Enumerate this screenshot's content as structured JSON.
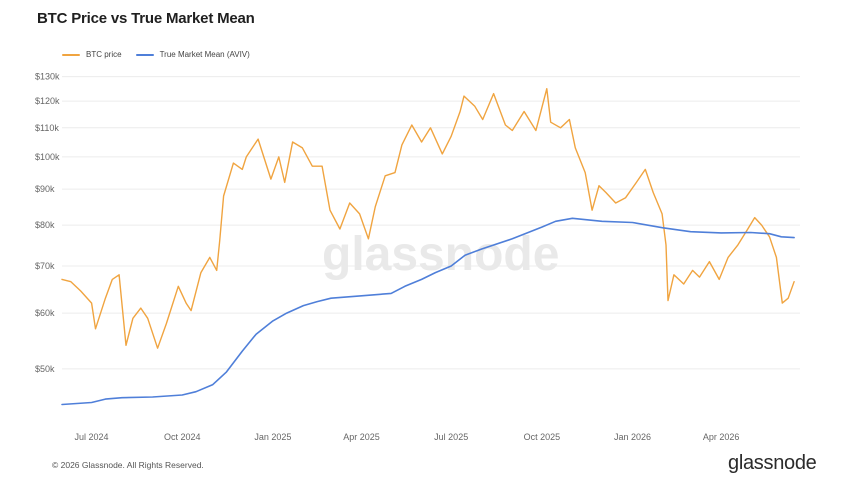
{
  "page": {
    "title": "BTC Price vs True Market Mean",
    "footer": "© 2026 Glassnode. All Rights Reserved.",
    "brand": "glassnode",
    "watermark": "glassnode"
  },
  "chart_data": {
    "type": "line",
    "title": "BTC Price vs True Market Mean",
    "xlabel": "",
    "ylabel": "",
    "y_scale": "log",
    "ylim": [
      43000,
      132000
    ],
    "xlim": [
      "2024-06-01",
      "2026-06-20"
    ],
    "grid": true,
    "legend_position": "top-left",
    "y_ticks": [
      {
        "value": 50000,
        "label": "$50k"
      },
      {
        "value": 60000,
        "label": "$60k"
      },
      {
        "value": 70000,
        "label": "$70k"
      },
      {
        "value": 80000,
        "label": "$80k"
      },
      {
        "value": 90000,
        "label": "$90k"
      },
      {
        "value": 100000,
        "label": "$100k"
      },
      {
        "value": 110000,
        "label": "$110k"
      },
      {
        "value": 120000,
        "label": "$120k"
      },
      {
        "value": 130000,
        "label": "$130k"
      }
    ],
    "x_ticks": [
      {
        "value": "2024-07-01",
        "label": "Jul 2024"
      },
      {
        "value": "2024-10-01",
        "label": "Oct 2024"
      },
      {
        "value": "2025-01-01",
        "label": "Jan 2025"
      },
      {
        "value": "2025-04-01",
        "label": "Apr 2025"
      },
      {
        "value": "2025-07-01",
        "label": "Jul 2025"
      },
      {
        "value": "2025-10-01",
        "label": "Oct 2025"
      },
      {
        "value": "2026-01-01",
        "label": "Jan 2026"
      },
      {
        "value": "2026-04-01",
        "label": "Apr 2026"
      }
    ],
    "series": [
      {
        "name": "BTC price",
        "color": "#f0a440",
        "points": [
          [
            "2024-06-01",
            67000
          ],
          [
            "2024-06-10",
            66500
          ],
          [
            "2024-06-20",
            64500
          ],
          [
            "2024-07-01",
            62000
          ],
          [
            "2024-07-05",
            57000
          ],
          [
            "2024-07-15",
            63000
          ],
          [
            "2024-07-22",
            67000
          ],
          [
            "2024-07-29",
            68000
          ],
          [
            "2024-08-05",
            54000
          ],
          [
            "2024-08-12",
            59000
          ],
          [
            "2024-08-20",
            61000
          ],
          [
            "2024-08-27",
            59000
          ],
          [
            "2024-09-06",
            53500
          ],
          [
            "2024-09-15",
            58000
          ],
          [
            "2024-09-27",
            65500
          ],
          [
            "2024-10-05",
            62000
          ],
          [
            "2024-10-10",
            60500
          ],
          [
            "2024-10-20",
            68500
          ],
          [
            "2024-10-29",
            72000
          ],
          [
            "2024-11-05",
            69000
          ],
          [
            "2024-11-08",
            76000
          ],
          [
            "2024-11-12",
            88000
          ],
          [
            "2024-11-22",
            98000
          ],
          [
            "2024-12-01",
            96000
          ],
          [
            "2024-12-05",
            100000
          ],
          [
            "2024-12-17",
            106000
          ],
          [
            "2024-12-30",
            93000
          ],
          [
            "2025-01-07",
            100000
          ],
          [
            "2025-01-13",
            92000
          ],
          [
            "2025-01-21",
            105000
          ],
          [
            "2025-01-31",
            103000
          ],
          [
            "2025-02-10",
            97000
          ],
          [
            "2025-02-20",
            97000
          ],
          [
            "2025-02-28",
            84000
          ],
          [
            "2025-03-10",
            79000
          ],
          [
            "2025-03-20",
            86000
          ],
          [
            "2025-03-30",
            83000
          ],
          [
            "2025-04-08",
            76500
          ],
          [
            "2025-04-15",
            85000
          ],
          [
            "2025-04-25",
            94000
          ],
          [
            "2025-05-05",
            95000
          ],
          [
            "2025-05-12",
            104000
          ],
          [
            "2025-05-22",
            111000
          ],
          [
            "2025-06-01",
            105000
          ],
          [
            "2025-06-10",
            110000
          ],
          [
            "2025-06-22",
            101000
          ],
          [
            "2025-07-01",
            107000
          ],
          [
            "2025-07-10",
            116000
          ],
          [
            "2025-07-14",
            122000
          ],
          [
            "2025-07-25",
            118000
          ],
          [
            "2025-08-02",
            113000
          ],
          [
            "2025-08-13",
            123000
          ],
          [
            "2025-08-25",
            111000
          ],
          [
            "2025-09-01",
            109000
          ],
          [
            "2025-09-13",
            116000
          ],
          [
            "2025-09-25",
            109000
          ],
          [
            "2025-10-06",
            125000
          ],
          [
            "2025-10-10",
            112000
          ],
          [
            "2025-10-20",
            110000
          ],
          [
            "2025-10-29",
            113000
          ],
          [
            "2025-11-04",
            103000
          ],
          [
            "2025-11-14",
            95000
          ],
          [
            "2025-11-21",
            84000
          ],
          [
            "2025-11-28",
            91000
          ],
          [
            "2025-12-05",
            89000
          ],
          [
            "2025-12-15",
            86000
          ],
          [
            "2025-12-25",
            87500
          ],
          [
            "2026-01-05",
            92000
          ],
          [
            "2026-01-14",
            96000
          ],
          [
            "2026-01-22",
            89000
          ],
          [
            "2026-01-31",
            83000
          ],
          [
            "2026-02-04",
            75000
          ],
          [
            "2026-02-06",
            62500
          ],
          [
            "2026-02-12",
            68000
          ],
          [
            "2026-02-22",
            66000
          ],
          [
            "2026-03-03",
            69000
          ],
          [
            "2026-03-10",
            67500
          ],
          [
            "2026-03-20",
            71000
          ],
          [
            "2026-03-30",
            67000
          ],
          [
            "2026-04-08",
            72000
          ],
          [
            "2026-04-18",
            75000
          ],
          [
            "2026-04-28",
            79000
          ],
          [
            "2026-05-05",
            82000
          ],
          [
            "2026-05-12",
            80000
          ],
          [
            "2026-05-20",
            77000
          ],
          [
            "2026-05-27",
            72000
          ],
          [
            "2026-06-02",
            62000
          ],
          [
            "2026-06-08",
            63000
          ],
          [
            "2026-06-14",
            66500
          ]
        ]
      },
      {
        "name": "True Market Mean (AVIV)",
        "color": "#4f7fd9",
        "points": [
          [
            "2024-06-01",
            44500
          ],
          [
            "2024-07-01",
            44800
          ],
          [
            "2024-07-15",
            45300
          ],
          [
            "2024-08-01",
            45500
          ],
          [
            "2024-09-01",
            45600
          ],
          [
            "2024-10-01",
            45900
          ],
          [
            "2024-10-15",
            46400
          ],
          [
            "2024-11-01",
            47500
          ],
          [
            "2024-11-15",
            49500
          ],
          [
            "2024-12-01",
            53000
          ],
          [
            "2024-12-15",
            56000
          ],
          [
            "2025-01-01",
            58500
          ],
          [
            "2025-01-15",
            60000
          ],
          [
            "2025-02-01",
            61500
          ],
          [
            "2025-02-15",
            62300
          ],
          [
            "2025-03-01",
            63000
          ],
          [
            "2025-04-01",
            63500
          ],
          [
            "2025-05-01",
            64000
          ],
          [
            "2025-05-15",
            65500
          ],
          [
            "2025-06-01",
            67000
          ],
          [
            "2025-06-15",
            68500
          ],
          [
            "2025-07-01",
            70000
          ],
          [
            "2025-07-15",
            72500
          ],
          [
            "2025-08-01",
            74000
          ],
          [
            "2025-09-01",
            76500
          ],
          [
            "2025-10-01",
            79500
          ],
          [
            "2025-10-15",
            81000
          ],
          [
            "2025-11-01",
            81800
          ],
          [
            "2025-12-01",
            81000
          ],
          [
            "2026-01-01",
            80700
          ],
          [
            "2026-02-01",
            79300
          ],
          [
            "2026-03-01",
            78300
          ],
          [
            "2026-04-01",
            78000
          ],
          [
            "2026-05-01",
            78100
          ],
          [
            "2026-05-20",
            77800
          ],
          [
            "2026-06-01",
            77000
          ],
          [
            "2026-06-14",
            76800
          ]
        ]
      }
    ]
  }
}
